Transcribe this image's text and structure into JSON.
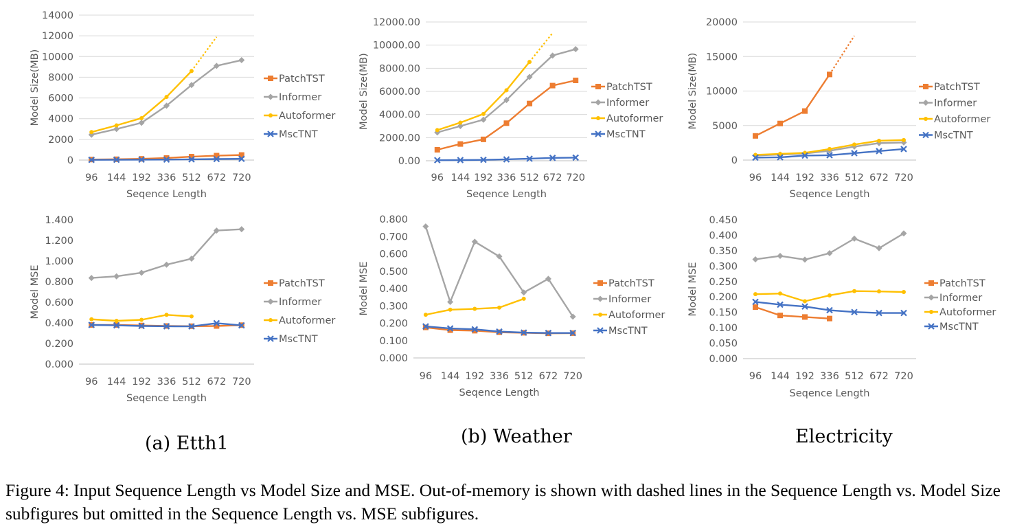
{
  "figure_caption": "Figure 4: Input Sequence Length vs Model Size and MSE. Out-of-memory is shown with dashed lines in the Sequence Length vs. Model Size subfigures but omitted in the Sequence Length vs. MSE subfigures.",
  "subcaptions": [
    "(a) Etth1",
    "(b) Weather",
    "Electricity"
  ],
  "colors": {
    "PatchTST": "#ED7D31",
    "Informer": "#A5A5A5",
    "Autoformer": "#FFC000",
    "MscTNT": "#4472C4",
    "grid": "#D9D9D9",
    "axis": "#BFBFBF",
    "text": "#595959"
  },
  "chart_data": [
    {
      "type": "line",
      "title": "",
      "xlabel": "Seqence Length",
      "ylabel": "Model Size(MB)",
      "categories": [
        "96",
        "144",
        "192",
        "336",
        "512",
        "672",
        "720"
      ],
      "ylim": [
        0,
        14000
      ],
      "yticks": [
        "0",
        "2000",
        "4000",
        "6000",
        "8000",
        "10000",
        "12000",
        "14000"
      ],
      "grid": true,
      "legend": "right",
      "series": [
        {
          "name": "PatchTST",
          "marker": "square",
          "values": [
            50,
            80,
            120,
            200,
            330,
            430,
            490
          ]
        },
        {
          "name": "Informer",
          "marker": "diamond",
          "values": [
            2450,
            3000,
            3600,
            5250,
            7250,
            9100,
            9650
          ]
        },
        {
          "name": "Autoformer",
          "marker": "circle",
          "values": [
            2700,
            3350,
            4050,
            6100,
            8600,
            null,
            null
          ],
          "dashed_to": {
            "index": 5,
            "value": 11900
          }
        },
        {
          "name": "MscTNT",
          "marker": "x",
          "values": [
            20,
            30,
            40,
            50,
            70,
            100,
            120
          ]
        }
      ]
    },
    {
      "type": "line",
      "title": "",
      "xlabel": "Seqence Length",
      "ylabel": "Model Size(MB)",
      "categories": [
        "96",
        "144",
        "192",
        "336",
        "512",
        "672",
        "720"
      ],
      "ylim": [
        0,
        12000
      ],
      "yticks": [
        "0.00",
        "2000.00",
        "4000.00",
        "6000.00",
        "8000.00",
        "10000.00",
        "12000.00"
      ],
      "grid": true,
      "legend": "right",
      "series": [
        {
          "name": "PatchTST",
          "marker": "square",
          "values": [
            950,
            1450,
            1850,
            3250,
            4950,
            6500,
            6950
          ]
        },
        {
          "name": "Informer",
          "marker": "diamond",
          "values": [
            2450,
            3000,
            3550,
            5250,
            7250,
            9100,
            9650
          ]
        },
        {
          "name": "Autoformer",
          "marker": "circle",
          "values": [
            2650,
            3300,
            4050,
            6100,
            8550,
            null,
            null
          ],
          "dashed_to": {
            "index": 5,
            "value": 11050
          }
        },
        {
          "name": "MscTNT",
          "marker": "x",
          "values": [
            50,
            60,
            80,
            120,
            180,
            250,
            270
          ]
        }
      ]
    },
    {
      "type": "line",
      "title": "",
      "xlabel": "Seqence Length",
      "ylabel": "Model Size(MB)",
      "categories": [
        "96",
        "144",
        "192",
        "336",
        "512",
        "672",
        "720"
      ],
      "ylim": [
        0,
        20000
      ],
      "yticks": [
        "0",
        "5000",
        "10000",
        "15000",
        "20000"
      ],
      "grid": true,
      "legend": "right",
      "series": [
        {
          "name": "PatchTST",
          "marker": "square",
          "values": [
            3500,
            5300,
            7100,
            12400,
            null,
            null,
            null
          ],
          "dashed_to": {
            "index": 4,
            "value": 18000
          }
        },
        {
          "name": "Informer",
          "marker": "diamond",
          "values": [
            650,
            800,
            950,
            1350,
            1950,
            2450,
            2550
          ]
        },
        {
          "name": "Autoformer",
          "marker": "circle",
          "values": [
            750,
            900,
            1050,
            1600,
            2250,
            2800,
            2900
          ]
        },
        {
          "name": "MscTNT",
          "marker": "x",
          "values": [
            350,
            400,
            650,
            700,
            1000,
            1300,
            1600
          ]
        }
      ]
    },
    {
      "type": "line",
      "title": "",
      "xlabel": "Seqence Length",
      "ylabel": "Model MSE",
      "categories": [
        "96",
        "144",
        "192",
        "336",
        "512",
        "672",
        "720"
      ],
      "ylim": [
        0,
        1.4
      ],
      "yticks": [
        "0.000",
        "0.200",
        "0.400",
        "0.600",
        "0.800",
        "1.000",
        "1.200",
        "1.400"
      ],
      "grid": false,
      "legend": "right",
      "series": [
        {
          "name": "PatchTST",
          "marker": "square",
          "values": [
            0.38,
            0.38,
            0.375,
            0.37,
            0.368,
            0.37,
            0.378
          ]
        },
        {
          "name": "Informer",
          "marker": "diamond",
          "values": [
            0.836,
            0.852,
            0.887,
            0.965,
            1.023,
            1.296,
            1.309
          ]
        },
        {
          "name": "Autoformer",
          "marker": "circle",
          "values": [
            0.435,
            0.42,
            0.43,
            0.478,
            0.463,
            null,
            null
          ]
        },
        {
          "name": "MscTNT",
          "marker": "x",
          "values": [
            0.38,
            0.376,
            0.37,
            0.367,
            0.366,
            0.397,
            0.376
          ]
        }
      ]
    },
    {
      "type": "line",
      "title": "",
      "xlabel": "Seqence Length",
      "ylabel": "Model MSE",
      "categories": [
        "96",
        "144",
        "192",
        "336",
        "512",
        "672",
        "720"
      ],
      "ylim": [
        0,
        0.8
      ],
      "yticks": [
        "0.000",
        "0.100",
        "0.200",
        "0.300",
        "0.400",
        "0.500",
        "0.600",
        "0.700",
        "0.800"
      ],
      "grid": false,
      "legend": "right",
      "series": [
        {
          "name": "PatchTST",
          "marker": "square",
          "values": [
            0.176,
            0.16,
            0.157,
            0.148,
            0.145,
            0.142,
            0.143
          ]
        },
        {
          "name": "Informer",
          "marker": "diamond",
          "values": [
            0.758,
            0.323,
            0.67,
            0.585,
            0.377,
            0.456,
            0.238
          ]
        },
        {
          "name": "Autoformer",
          "marker": "circle",
          "values": [
            0.249,
            0.278,
            0.283,
            0.29,
            0.341,
            null,
            null
          ]
        },
        {
          "name": "MscTNT",
          "marker": "x",
          "values": [
            0.182,
            0.17,
            0.165,
            0.152,
            0.146,
            0.144,
            0.144
          ]
        }
      ]
    },
    {
      "type": "line",
      "title": "",
      "xlabel": "Seqence Length",
      "ylabel": "Model MSE",
      "categories": [
        "96",
        "144",
        "192",
        "336",
        "512",
        "672",
        "720"
      ],
      "ylim": [
        0,
        0.45
      ],
      "yticks": [
        "0.000",
        "0.050",
        "0.100",
        "0.150",
        "0.200",
        "0.250",
        "0.300",
        "0.350",
        "0.400",
        "0.450"
      ],
      "grid": false,
      "legend": "right",
      "series": [
        {
          "name": "PatchTST",
          "marker": "square",
          "values": [
            0.167,
            0.14,
            0.135,
            0.13,
            null,
            null,
            null
          ]
        },
        {
          "name": "Informer",
          "marker": "diamond",
          "values": [
            0.322,
            0.333,
            0.321,
            0.342,
            0.389,
            0.358,
            0.406
          ]
        },
        {
          "name": "Autoformer",
          "marker": "circle",
          "values": [
            0.209,
            0.211,
            0.186,
            0.205,
            0.219,
            0.218,
            0.216
          ]
        },
        {
          "name": "MscTNT",
          "marker": "x",
          "values": [
            0.184,
            0.175,
            0.169,
            0.157,
            0.151,
            0.148,
            0.148
          ]
        }
      ]
    }
  ]
}
